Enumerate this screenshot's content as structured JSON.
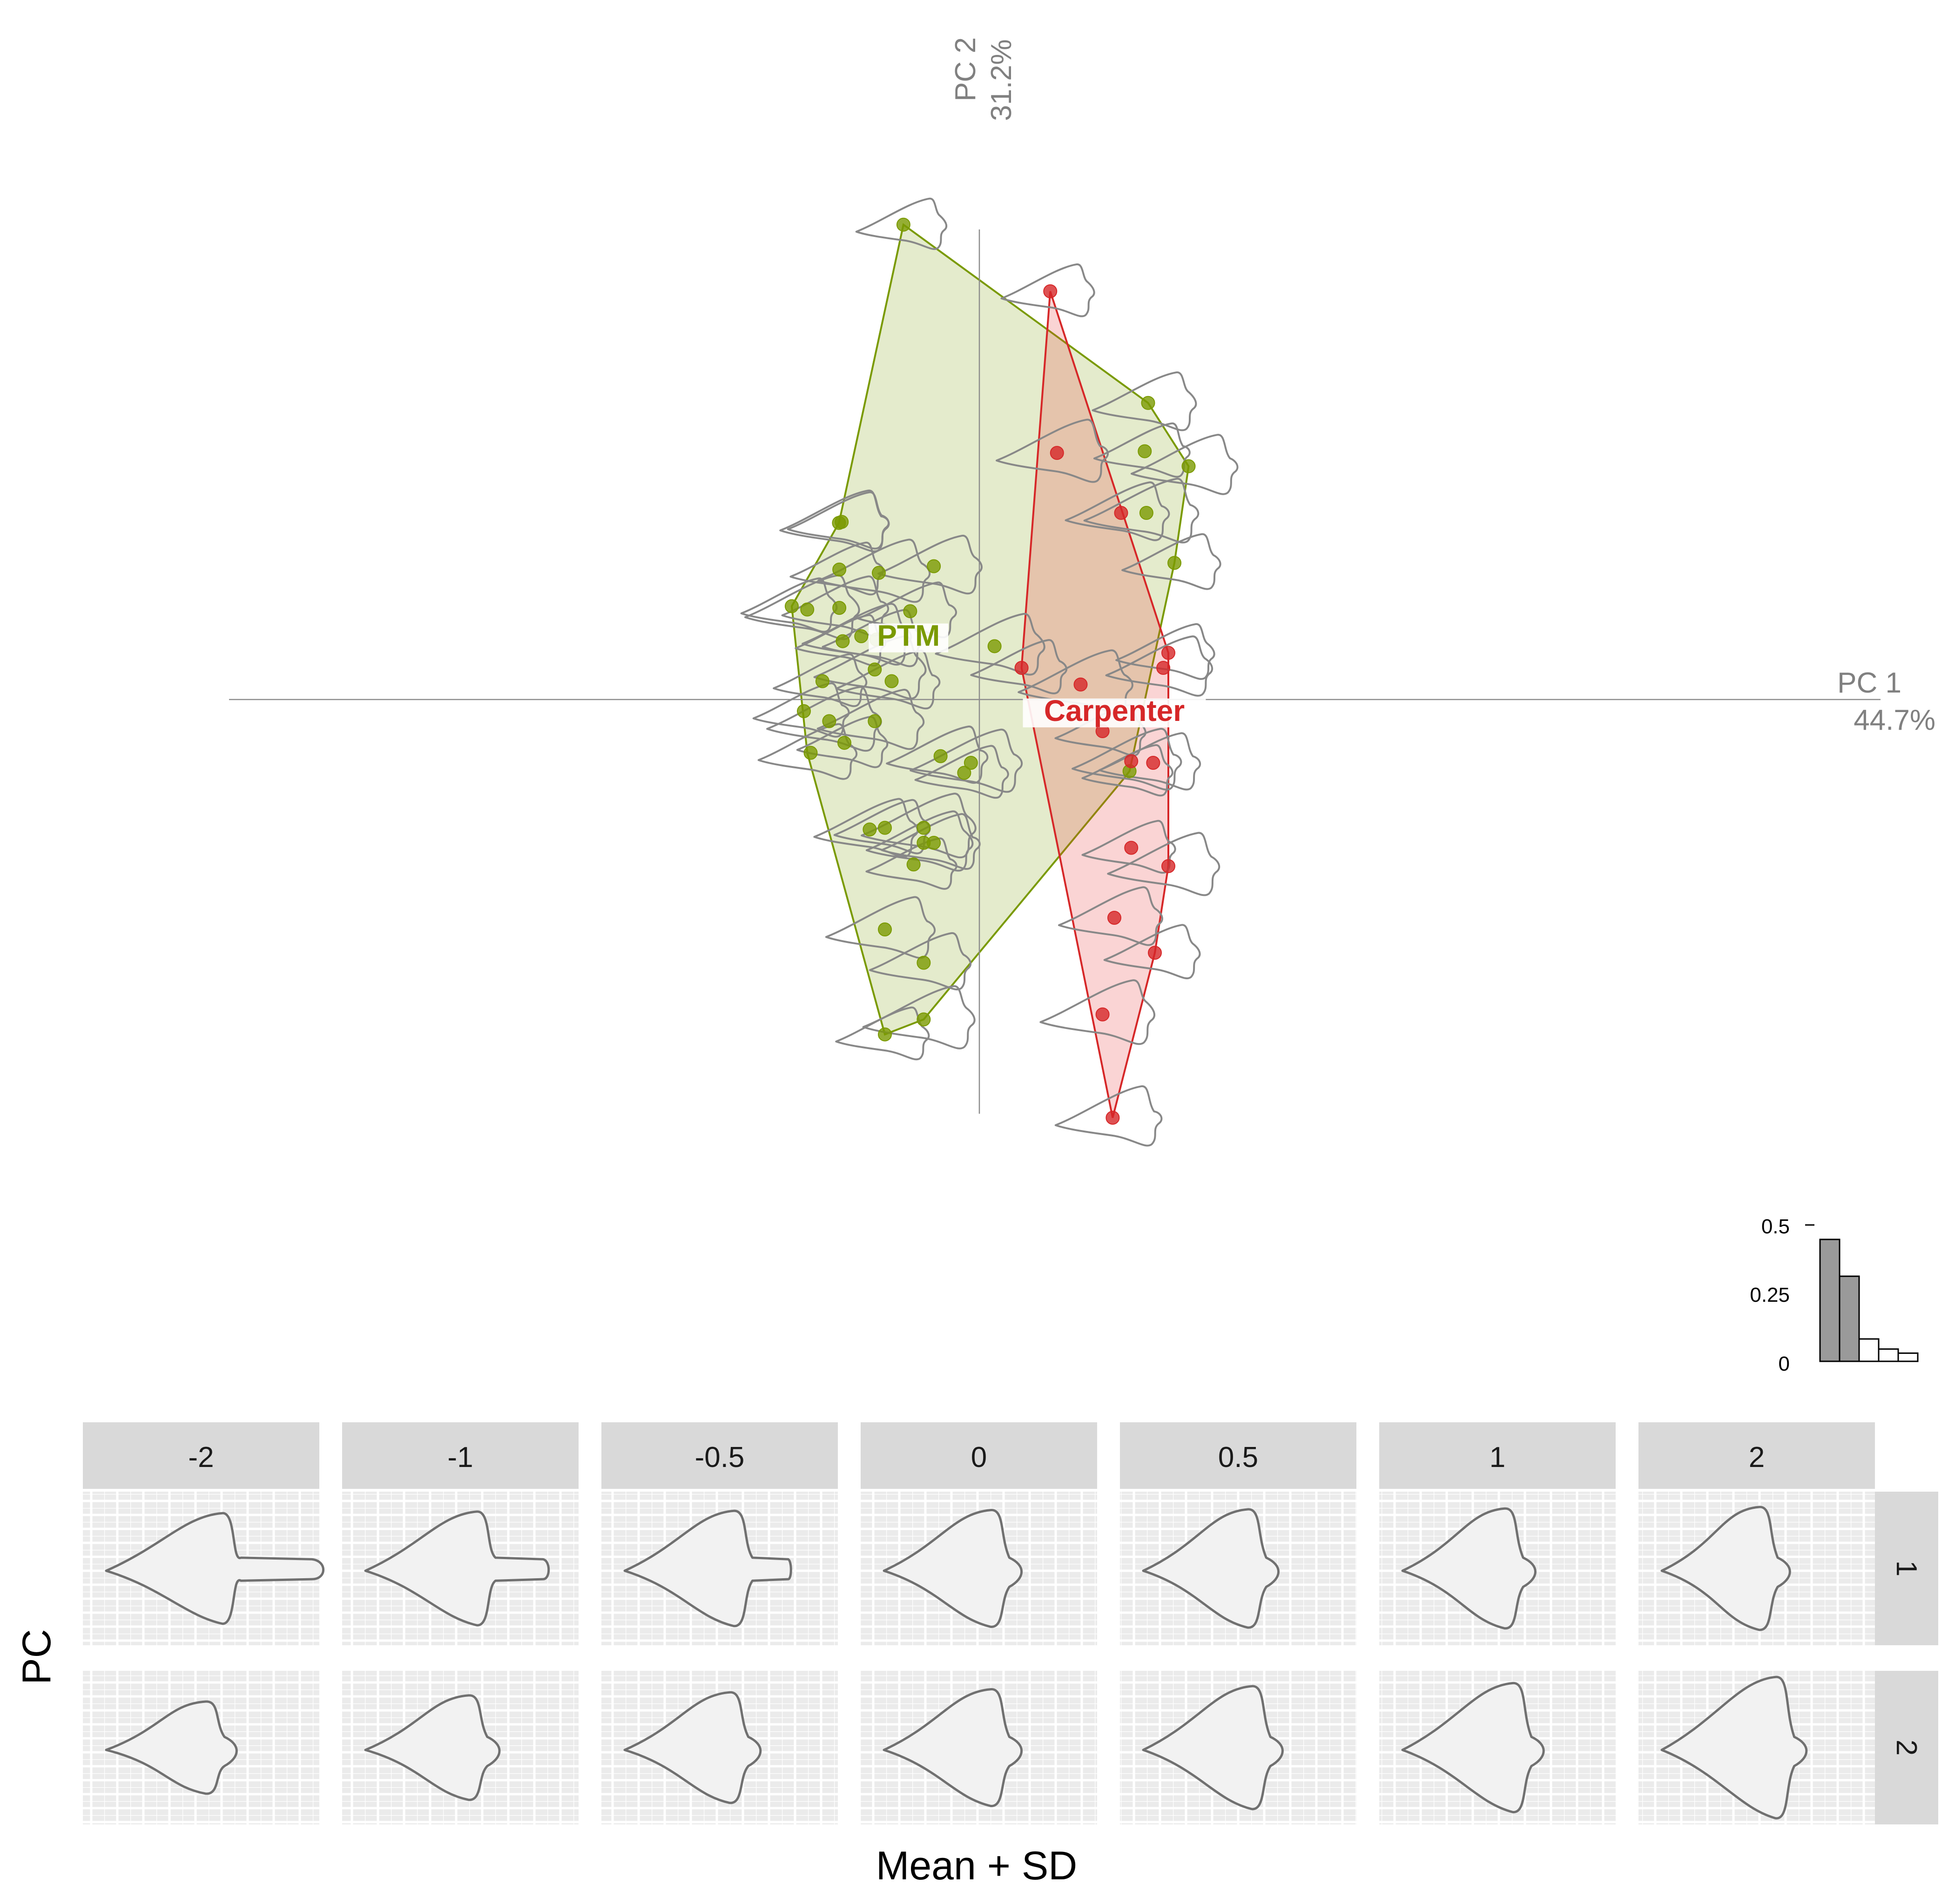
{
  "colors": {
    "ptm": "#7a9a01",
    "carpenter": "#d62728",
    "axis": "#808080",
    "outline": "#888888",
    "strip": "#d9d9d9",
    "panel_bg": "#ebebeb",
    "shape_fill": "#f2f2f2",
    "shape_stroke": "#707070"
  },
  "chart_data": [
    {
      "type": "scatter",
      "title": "",
      "axes": {
        "x": {
          "label": "PC 1",
          "percent": "44.7%",
          "range": [
            -0.16,
            0.205
          ]
        },
        "y": {
          "label": "PC 2",
          "percent": "31.2%",
          "range": [
            -0.14,
            0.155
          ]
        }
      },
      "grid": false,
      "groups": [
        {
          "name": "PTM",
          "points": [
            [
              -0.0225,
              0.1425
            ],
            [
              -0.0416,
              0.053
            ],
            [
              -0.0408,
              0.0533
            ],
            [
              -0.0415,
              0.039
            ],
            [
              -0.0298,
              0.038
            ],
            [
              -0.0135,
              0.04
            ],
            [
              -0.0556,
              0.028
            ],
            [
              -0.051,
              0.027
            ],
            [
              -0.0415,
              0.0275
            ],
            [
              -0.0205,
              0.0265
            ],
            [
              -0.0405,
              0.0175
            ],
            [
              -0.035,
              0.019
            ],
            [
              -0.0305,
              0.018
            ],
            [
              -0.0465,
              0.0055
            ],
            [
              -0.031,
              0.009
            ],
            [
              -0.026,
              0.0055
            ],
            [
              -0.052,
              -0.0035
            ],
            [
              -0.0445,
              -0.0065
            ],
            [
              -0.031,
              -0.0065
            ],
            [
              -0.05,
              -0.016
            ],
            [
              -0.04,
              -0.013
            ],
            [
              0.0045,
              0.016
            ],
            [
              -0.0115,
              -0.017
            ],
            [
              -0.0045,
              -0.022
            ],
            [
              -0.0025,
              -0.019
            ],
            [
              -0.0325,
              -0.039
            ],
            [
              -0.028,
              -0.0385
            ],
            [
              -0.0165,
              -0.0385
            ],
            [
              -0.0165,
              -0.043
            ],
            [
              -0.0135,
              -0.043
            ],
            [
              -0.0195,
              -0.0495
            ],
            [
              -0.028,
              -0.069
            ],
            [
              -0.0165,
              -0.079
            ],
            [
              -0.028,
              -0.1005
            ],
            [
              -0.0165,
              -0.096
            ],
            [
              0.05,
              0.089
            ],
            [
              0.049,
              0.0745
            ],
            [
              0.0495,
              0.056
            ],
            [
              0.062,
              0.07
            ],
            [
              0.0578,
              0.041
            ],
            [
              0.0445,
              -0.0215
            ]
          ],
          "hull": [
            [
              -0.0225,
              0.1425
            ],
            [
              0.05,
              0.089
            ],
            [
              0.062,
              0.07
            ],
            [
              0.0578,
              0.041
            ],
            [
              0.0445,
              -0.0215
            ],
            [
              0.043,
              -0.0235
            ],
            [
              -0.0165,
              -0.096
            ],
            [
              -0.028,
              -0.1005
            ],
            [
              -0.051,
              -0.016
            ],
            [
              -0.0556,
              0.028
            ],
            [
              -0.0416,
              0.053
            ]
          ]
        },
        {
          "name": "Carpenter",
          "points": [
            [
              0.021,
              0.1225
            ],
            [
              0.023,
              0.074
            ],
            [
              0.042,
              0.056
            ],
            [
              0.0125,
              0.0095
            ],
            [
              0.03,
              0.0045
            ],
            [
              0.0545,
              0.0095
            ],
            [
              0.056,
              0.014
            ],
            [
              0.0365,
              -0.0095
            ],
            [
              0.045,
              -0.0185
            ],
            [
              0.0515,
              -0.019
            ],
            [
              0.045,
              -0.0445
            ],
            [
              0.056,
              -0.05
            ],
            [
              0.04,
              -0.0655
            ],
            [
              0.052,
              -0.076
            ],
            [
              0.0365,
              -0.0945
            ],
            [
              0.0395,
              -0.1255
            ]
          ],
          "hull": [
            [
              0.021,
              0.1225
            ],
            [
              0.056,
              0.014
            ],
            [
              0.056,
              -0.05
            ],
            [
              0.052,
              -0.076
            ],
            [
              0.0395,
              -0.1255
            ],
            [
              0.0125,
              0.0095
            ]
          ]
        }
      ],
      "group_labels": [
        {
          "name": "PTM",
          "x": -0.021,
          "y": 0.0175
        },
        {
          "name": "Carpenter",
          "x": 0.04,
          "y": -0.005
        }
      ]
    },
    {
      "type": "bar",
      "title": "",
      "xlabel": "",
      "ylabel": "",
      "ylim": [
        0,
        0.5
      ],
      "tick_labels": [
        "0.5",
        "0.25",
        "0"
      ],
      "values": [
        0.447,
        0.312,
        0.082,
        0.045,
        0.03
      ],
      "highlighted": [
        true,
        true,
        false,
        false,
        false
      ]
    },
    {
      "type": "other",
      "description_free": true,
      "title": "",
      "xlabel": "Mean + SD",
      "ylabel": "PC",
      "columns": [
        "-2",
        "-1",
        "-0.5",
        "0",
        "0.5",
        "1",
        "2"
      ],
      "sd_values": [
        -2,
        -1,
        -0.5,
        0,
        0.5,
        1,
        2
      ],
      "rows": [
        "1",
        "2"
      ]
    }
  ]
}
